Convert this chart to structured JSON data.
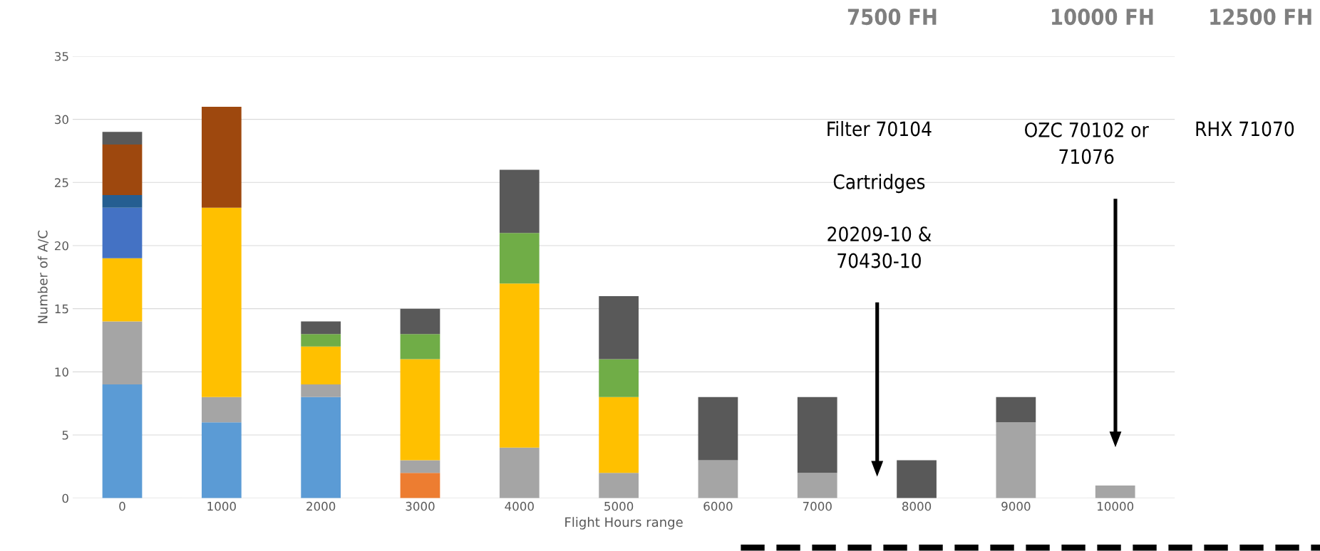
{
  "chart_data": {
    "type": "bar",
    "stacked": true,
    "xlabel": "Flight Hours range",
    "ylabel": "Number of A/C",
    "categories": [
      "0",
      "1000",
      "2000",
      "3000",
      "4000",
      "5000",
      "6000",
      "7000",
      "8000",
      "9000",
      "10000"
    ],
    "ylim": [
      0,
      35
    ],
    "yticks": [
      0,
      5,
      10,
      15,
      20,
      25,
      30,
      35
    ],
    "grid": "y",
    "series": [
      {
        "color": "#5b9bd5",
        "values": [
          9,
          6,
          8,
          null,
          null,
          null,
          null,
          null,
          null,
          null,
          null
        ]
      },
      {
        "color": "#ed7d31",
        "values": [
          null,
          null,
          null,
          2,
          null,
          null,
          null,
          null,
          null,
          null,
          null
        ]
      },
      {
        "color": "#a5a5a5",
        "values": [
          5,
          2,
          1,
          1,
          4,
          2,
          3,
          2,
          null,
          6,
          1
        ]
      },
      {
        "color": "#ffc000",
        "values": [
          5,
          15,
          3,
          8,
          13,
          6,
          null,
          null,
          null,
          null,
          null
        ]
      },
      {
        "color": "#4472c4",
        "values": [
          4,
          null,
          null,
          null,
          null,
          null,
          null,
          null,
          null,
          null,
          null
        ]
      },
      {
        "color": "#70ad47",
        "values": [
          null,
          null,
          1,
          2,
          4,
          3,
          null,
          null,
          null,
          null,
          null
        ]
      },
      {
        "color": "#255e91",
        "values": [
          1,
          null,
          null,
          null,
          null,
          null,
          null,
          null,
          null,
          null,
          null
        ]
      },
      {
        "color": "#9e480e",
        "values": [
          4,
          8,
          null,
          null,
          null,
          null,
          null,
          null,
          null,
          null,
          null
        ]
      },
      {
        "color": "#595959",
        "values": [
          1,
          null,
          1,
          2,
          5,
          5,
          5,
          6,
          3,
          2,
          null
        ]
      }
    ],
    "annotations": [
      "7500 FH",
      "10000 FH",
      "12500 FH",
      "Filter 70104",
      "Cartridges",
      "20209-10 &\n70430-10",
      "OZC 70102 or\n71076",
      "RHX 71070"
    ]
  }
}
